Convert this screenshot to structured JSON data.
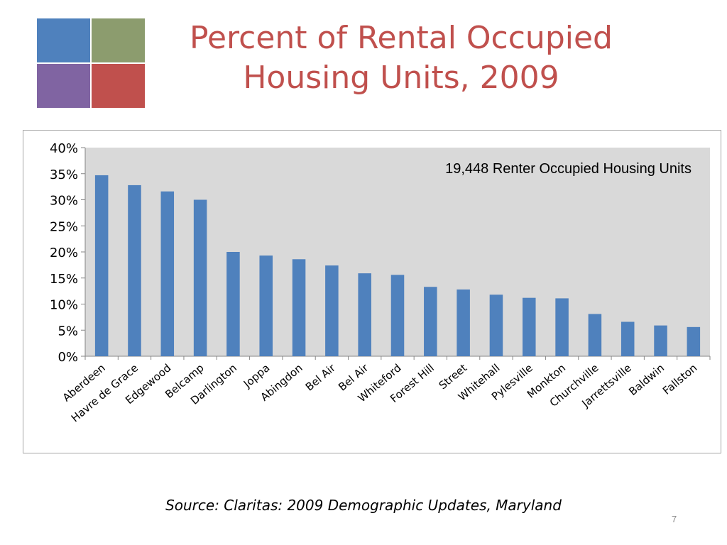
{
  "slide": {
    "title_line1": "Percent of Rental Occupied",
    "title_line2": "Housing Units, 2009",
    "source": "Source: Claritas: 2009 Demographic Updates, Maryland",
    "page_number": "7",
    "logo_colors": [
      "#4f81bd",
      "#8c9c6e",
      "#8064a2",
      "#c0504d"
    ]
  },
  "chart_data": {
    "type": "bar",
    "title": "",
    "annotation": "19,448 Renter Occupied Housing Units",
    "xlabel": "",
    "ylabel": "",
    "categories": [
      "Aberdeen",
      "Havre de Grace",
      "Edgewood",
      "Belcamp",
      "Darlington",
      "Joppa",
      "Abingdon",
      "Bel Air",
      "Bel Air",
      "Whiteford",
      "Forest Hill",
      "Street",
      "Whitehall",
      "Pylesville",
      "Monkton",
      "Churchville",
      "Jarrettsville",
      "Baldwin",
      "Fallston"
    ],
    "values": [
      34.7,
      32.8,
      31.6,
      30.0,
      20.0,
      19.3,
      18.6,
      17.4,
      15.9,
      15.6,
      13.3,
      12.8,
      11.8,
      11.2,
      11.1,
      8.1,
      6.6,
      5.9,
      5.6
    ],
    "ylim": [
      0,
      40
    ],
    "yticks": [
      0,
      5,
      10,
      15,
      20,
      25,
      30,
      35,
      40
    ],
    "ytick_labels": [
      "0%",
      "5%",
      "10%",
      "15%",
      "20%",
      "25%",
      "30%",
      "35%",
      "40%"
    ],
    "grid": false,
    "bar_color": "#4f81bd",
    "plot_background": "#d9d9d9"
  }
}
